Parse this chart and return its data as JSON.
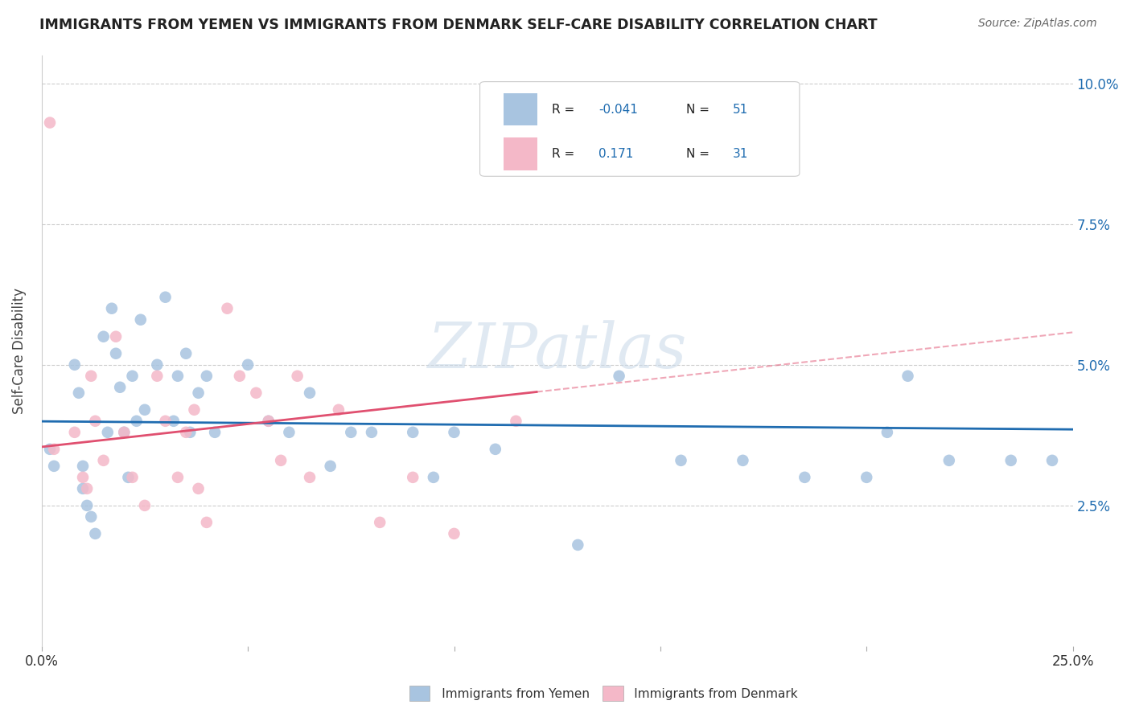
{
  "title": "IMMIGRANTS FROM YEMEN VS IMMIGRANTS FROM DENMARK SELF-CARE DISABILITY CORRELATION CHART",
  "source": "Source: ZipAtlas.com",
  "ylabel": "Self-Care Disability",
  "xlim": [
    0.0,
    0.25
  ],
  "ylim": [
    0.0,
    0.105
  ],
  "legend_r_yemen": "-0.041",
  "legend_n_yemen": "51",
  "legend_r_denmark": "0.171",
  "legend_n_denmark": "31",
  "color_yemen": "#a8c4e0",
  "color_denmark": "#f4b8c8",
  "line_yemen": "#1f6cb0",
  "line_denmark": "#e05070",
  "watermark": "ZIPatlas",
  "yemen_x": [
    0.002,
    0.003,
    0.008,
    0.009,
    0.01,
    0.01,
    0.011,
    0.012,
    0.013,
    0.015,
    0.016,
    0.017,
    0.018,
    0.019,
    0.02,
    0.021,
    0.022,
    0.023,
    0.024,
    0.025,
    0.028,
    0.03,
    0.032,
    0.033,
    0.035,
    0.036,
    0.038,
    0.04,
    0.042,
    0.05,
    0.055,
    0.06,
    0.065,
    0.07,
    0.075,
    0.08,
    0.09,
    0.095,
    0.1,
    0.11,
    0.13,
    0.14,
    0.155,
    0.17,
    0.185,
    0.2,
    0.205,
    0.21,
    0.22,
    0.235,
    0.245
  ],
  "yemen_y": [
    0.035,
    0.032,
    0.05,
    0.045,
    0.032,
    0.028,
    0.025,
    0.023,
    0.02,
    0.055,
    0.038,
    0.06,
    0.052,
    0.046,
    0.038,
    0.03,
    0.048,
    0.04,
    0.058,
    0.042,
    0.05,
    0.062,
    0.04,
    0.048,
    0.052,
    0.038,
    0.045,
    0.048,
    0.038,
    0.05,
    0.04,
    0.038,
    0.045,
    0.032,
    0.038,
    0.038,
    0.038,
    0.03,
    0.038,
    0.035,
    0.018,
    0.048,
    0.033,
    0.033,
    0.03,
    0.03,
    0.038,
    0.048,
    0.033,
    0.033,
    0.033
  ],
  "denmark_x": [
    0.002,
    0.003,
    0.008,
    0.01,
    0.011,
    0.012,
    0.013,
    0.015,
    0.018,
    0.02,
    0.022,
    0.025,
    0.028,
    0.03,
    0.033,
    0.035,
    0.037,
    0.038,
    0.04,
    0.045,
    0.048,
    0.052,
    0.055,
    0.058,
    0.062,
    0.065,
    0.072,
    0.082,
    0.09,
    0.1,
    0.115
  ],
  "denmark_y": [
    0.093,
    0.035,
    0.038,
    0.03,
    0.028,
    0.048,
    0.04,
    0.033,
    0.055,
    0.038,
    0.03,
    0.025,
    0.048,
    0.04,
    0.03,
    0.038,
    0.042,
    0.028,
    0.022,
    0.06,
    0.048,
    0.045,
    0.04,
    0.033,
    0.048,
    0.03,
    0.042,
    0.022,
    0.03,
    0.02,
    0.04
  ]
}
